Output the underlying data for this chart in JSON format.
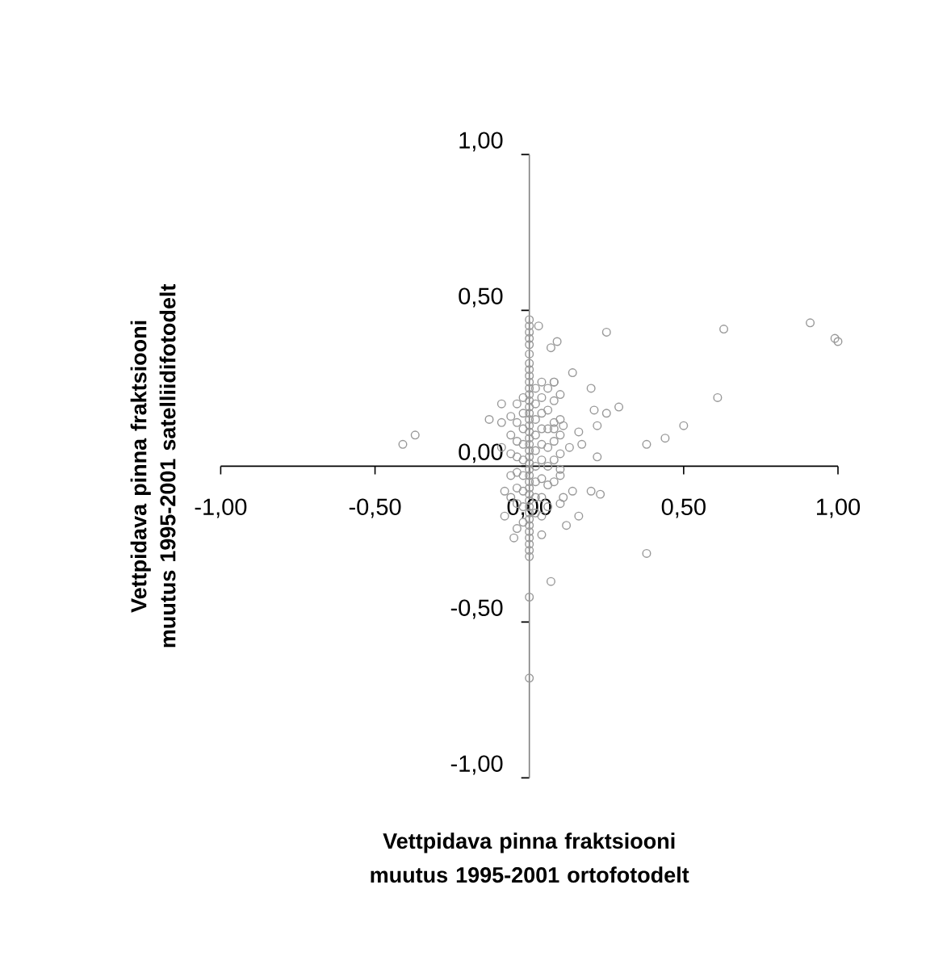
{
  "chart_data": {
    "type": "scatter",
    "xlabel": "Vettpidava pinna fraktsiooni muutus 1995-2001 ortofotodelt",
    "ylabel": "Vettpidava pinna fraktsiooni muutus 1995-2001 satelliidifotodelt",
    "xlim": [
      -1,
      1
    ],
    "ylim": [
      -1,
      1
    ],
    "xticks": [
      {
        "value": -1,
        "label": "-1,00"
      },
      {
        "value": -0.5,
        "label": "-0,50"
      },
      {
        "value": 0,
        "label": "0,00"
      },
      {
        "value": 0.5,
        "label": "0,50"
      },
      {
        "value": 1,
        "label": "1,00"
      }
    ],
    "yticks": [
      {
        "value": -1,
        "label": "-1,00"
      },
      {
        "value": -0.5,
        "label": "-0,50"
      },
      {
        "value": 0,
        "label": "0,00"
      },
      {
        "value": 0.5,
        "label": "0,50"
      },
      {
        "value": 1,
        "label": "1,00"
      }
    ],
    "marker": "circle",
    "series": [
      {
        "color": "#999999",
        "x": [
          0.91,
          0.99,
          1.0,
          0.63,
          0.61,
          0.5,
          0.44,
          0.38,
          0.25,
          0.29,
          0.25,
          0.21,
          0.2,
          0.14,
          0.22,
          0.22,
          0.09,
          0.07,
          0.03,
          -0.37,
          -0.41,
          -0.09,
          -0.13,
          -0.09,
          0.16,
          0.17,
          0.13,
          0.38,
          0.07,
          0.0,
          0.0,
          0.23,
          0.2,
          0.16,
          0.12,
          0.11,
          0.14,
          -0.05,
          -0.08,
          -0.08,
          -0.09,
          0.1,
          0.08,
          0.08,
          0.11,
          0.0,
          0.0,
          0.0,
          0.0,
          0.0,
          0.0,
          0.0,
          0.0,
          0.0,
          0.0,
          0.0,
          0.0,
          0.0,
          0.0,
          0.0,
          0.0,
          0.0,
          0.0,
          0.0,
          0.0,
          0.0,
          0.0,
          0.0,
          0.0,
          0.0,
          0.0,
          0.0,
          0.0,
          0.0,
          0.0,
          0.0,
          0.0,
          0.0,
          0.0,
          0.0,
          0.0,
          0.0,
          0.0,
          0.02,
          0.02,
          0.02,
          0.02,
          0.02,
          0.02,
          0.02,
          0.02,
          0.02,
          -0.02,
          -0.02,
          -0.02,
          -0.02,
          -0.02,
          -0.02,
          -0.02,
          -0.02,
          -0.02,
          0.04,
          0.04,
          0.04,
          0.04,
          0.04,
          0.04,
          0.04,
          0.04,
          0.04,
          0.04,
          -0.04,
          -0.04,
          -0.04,
          -0.04,
          -0.04,
          -0.04,
          -0.04,
          -0.04,
          0.06,
          0.06,
          0.06,
          0.06,
          0.06,
          0.06,
          0.06,
          -0.06,
          -0.06,
          -0.06,
          -0.06,
          -0.06,
          0.08,
          0.08,
          0.08,
          0.08,
          0.08,
          0.08,
          0.1,
          0.1,
          0.1,
          0.1,
          0.1,
          0.1
        ],
        "values": [
          0.46,
          0.41,
          0.4,
          0.44,
          0.22,
          0.13,
          0.09,
          0.07,
          0.43,
          0.19,
          0.17,
          0.18,
          0.25,
          0.3,
          0.13,
          0.03,
          0.4,
          0.38,
          0.45,
          0.1,
          0.07,
          0.2,
          0.15,
          0.14,
          0.11,
          0.07,
          0.06,
          -0.28,
          -0.37,
          -0.42,
          -0.68,
          -0.09,
          -0.08,
          -0.16,
          -0.19,
          -0.1,
          -0.08,
          -0.23,
          -0.16,
          -0.08,
          0.06,
          -0.01,
          0.27,
          0.12,
          0.13,
          0.47,
          0.45,
          0.43,
          0.41,
          0.39,
          0.36,
          0.33,
          0.31,
          0.29,
          0.27,
          0.25,
          0.23,
          0.21,
          0.19,
          0.17,
          0.15,
          0.13,
          0.11,
          0.09,
          0.07,
          0.05,
          0.03,
          0.01,
          -0.01,
          -0.03,
          -0.05,
          -0.07,
          -0.09,
          -0.11,
          -0.13,
          -0.15,
          -0.17,
          -0.19,
          -0.21,
          -0.23,
          -0.25,
          -0.27,
          -0.29,
          0.25,
          0.2,
          0.15,
          0.1,
          0.05,
          0.0,
          -0.05,
          -0.1,
          -0.15,
          0.22,
          0.17,
          0.12,
          0.07,
          0.02,
          -0.03,
          -0.08,
          -0.13,
          -0.18,
          0.27,
          0.22,
          0.17,
          0.12,
          0.07,
          0.02,
          -0.04,
          -0.1,
          -0.16,
          -0.22,
          0.2,
          0.14,
          0.08,
          0.03,
          -0.02,
          -0.07,
          -0.12,
          -0.2,
          0.25,
          0.18,
          0.12,
          0.06,
          0.0,
          -0.06,
          -0.13,
          0.16,
          0.1,
          0.04,
          -0.03,
          -0.1,
          0.27,
          0.21,
          0.14,
          0.08,
          0.02,
          -0.05,
          0.23,
          0.15,
          0.1,
          0.04,
          -0.03,
          -0.12
        ]
      }
    ]
  }
}
